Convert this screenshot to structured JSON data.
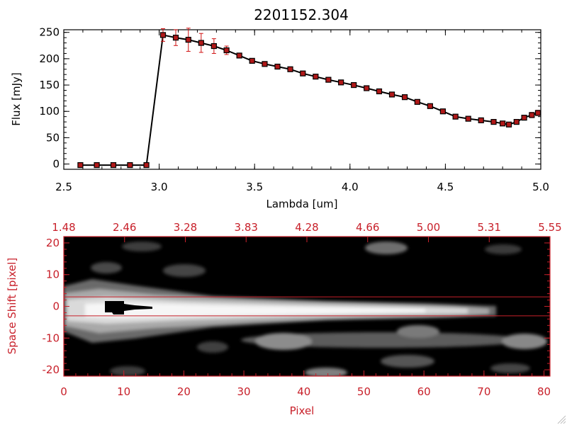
{
  "chart_data": [
    {
      "type": "line",
      "title": "2201152.304",
      "xlabel": "Lambda [um]",
      "ylabel": "Flux [mJy]",
      "xlim": [
        2.5,
        5.0
      ],
      "ylim": [
        -10,
        255
      ],
      "xticks": [
        "2.5",
        "3.0",
        "3.5",
        "4.0",
        "4.5",
        "5.0"
      ],
      "yticks": [
        "0",
        "50",
        "100",
        "150",
        "200",
        "250"
      ],
      "series_color": "#000000",
      "marker_color": "#b01818",
      "errorbar_color": "#d01010",
      "x": [
        2.587,
        2.673,
        2.76,
        2.847,
        2.933,
        3.02,
        3.087,
        3.153,
        3.22,
        3.287,
        3.353,
        3.42,
        3.487,
        3.553,
        3.62,
        3.687,
        3.753,
        3.82,
        3.887,
        3.953,
        4.02,
        4.087,
        4.153,
        4.22,
        4.287,
        4.353,
        4.42,
        4.487,
        4.553,
        4.62,
        4.687,
        4.753,
        4.8,
        4.833,
        4.873,
        4.913,
        4.953,
        4.985
      ],
      "y": [
        -2,
        -2,
        -2,
        -2,
        -2,
        245,
        240,
        236,
        230,
        224,
        216,
        206,
        196,
        190,
        185,
        180,
        172,
        166,
        160,
        155,
        150,
        144,
        138,
        132,
        127,
        118,
        110,
        100,
        90,
        86,
        83,
        80,
        77,
        75,
        80,
        88,
        93,
        97
      ],
      "yerr": [
        0,
        0,
        0,
        0,
        0,
        12,
        15,
        22,
        18,
        14,
        8,
        4,
        3,
        3,
        3,
        3,
        3,
        3,
        3,
        3,
        3,
        3,
        3,
        3,
        3,
        3,
        3,
        3,
        3,
        3,
        3,
        3,
        3,
        3,
        4,
        4,
        5,
        5
      ]
    },
    {
      "type": "heatmap",
      "xlabel": "Pixel",
      "ylabel": "Space Shift [pixel]",
      "xlim": [
        0,
        81
      ],
      "ylim": [
        -22,
        22
      ],
      "xticks": [
        "0",
        "10",
        "20",
        "30",
        "40",
        "50",
        "60",
        "70",
        "80"
      ],
      "yticks": [
        "-20",
        "-10",
        "0",
        "10",
        "20"
      ],
      "top_ticks": [
        "1.48",
        "2.46",
        "3.28",
        "3.83",
        "4.28",
        "4.66",
        "5.00",
        "5.31",
        "5.55"
      ],
      "axis_color": "#c8202a",
      "extraction_band": [
        -3,
        3
      ]
    }
  ]
}
